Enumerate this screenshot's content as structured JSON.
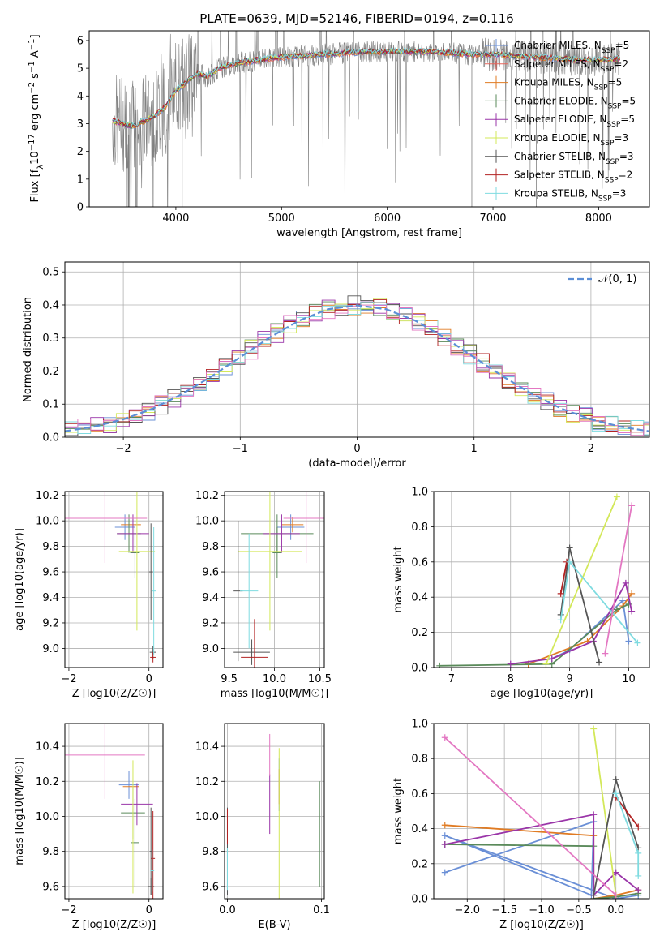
{
  "figure": {
    "colors": [
      "#6a8fd6",
      "#e8645a",
      "#e07b23",
      "#5a8a5a",
      "#9a35a8",
      "#d3e85a",
      "#555555",
      "#b22222",
      "#7fdbe0"
    ],
    "hist_colors": [
      "#6a8fd6",
      "#e07b23",
      "#5a8a5a",
      "#9a35a8",
      "#d3e85a",
      "#555555",
      "#b22222",
      "#7fdbe0",
      "#e377c2"
    ],
    "pink": "#e377c2"
  },
  "chart_data": [
    {
      "id": "spectrum",
      "type": "line",
      "title": "PLATE=0639, MJD=52146, FIBERID=0194, z=0.116",
      "xlabel": "wavelength [Angstrom, rest frame]",
      "ylabel_parts": [
        "Flux [f",
        "λ",
        "10",
        "−17",
        " erg cm",
        "−2",
        " s",
        "−1",
        " A",
        "−1",
        "]"
      ],
      "xlim": [
        3180,
        8480
      ],
      "ylim": [
        0,
        6.35
      ],
      "xticks": [
        "4000",
        "5000",
        "6000",
        "7000",
        "8000"
      ],
      "yticks": [
        "0",
        "1",
        "2",
        "3",
        "4",
        "5",
        "6"
      ],
      "legend": [
        {
          "name": "Chabrier MILES",
          "n": "5"
        },
        {
          "name": "Salpeter MILES",
          "n": "2"
        },
        {
          "name": "Kroupa MILES",
          "n": "5"
        },
        {
          "name": "Chabrier ELODIE",
          "n": "5"
        },
        {
          "name": "Salpeter ELODIE",
          "n": "5"
        },
        {
          "name": "Kroupa ELODIE",
          "n": "3"
        },
        {
          "name": "Chabrier STELIB",
          "n": "3"
        },
        {
          "name": "Salpeter STELIB",
          "n": "2"
        },
        {
          "name": "Kroupa STELIB",
          "n": "3"
        }
      ],
      "legend_sub": "SSP",
      "legend_prefix": "N",
      "model_curve_x": [
        3400,
        3500,
        3600,
        3700,
        3800,
        3900,
        4000,
        4100,
        4200,
        4300,
        4400,
        4500,
        4600,
        4700,
        4800,
        4900,
        5000,
        5200,
        5400,
        5600,
        5800,
        6000,
        6200,
        6400,
        6600,
        6800,
        7000,
        7200,
        7400,
        7600,
        7800,
        8000,
        8200
      ],
      "model_curve_y": [
        3.1,
        3.0,
        2.9,
        3.1,
        3.3,
        3.6,
        4.2,
        4.5,
        4.8,
        4.7,
        5.0,
        5.1,
        5.2,
        5.25,
        5.3,
        5.35,
        5.4,
        5.45,
        5.5,
        5.55,
        5.6,
        5.6,
        5.6,
        5.6,
        5.55,
        5.5,
        5.5,
        5.45,
        5.4,
        5.35,
        5.3,
        5.3,
        5.35
      ]
    },
    {
      "id": "residuals",
      "type": "line",
      "xlabel": "(data-model)/error",
      "ylabel": "Normed distribution",
      "xlim": [
        -2.5,
        2.5
      ],
      "ylim": [
        0,
        0.53
      ],
      "xticks": [
        "−2",
        "−1",
        "0",
        "1",
        "2"
      ],
      "yticks": [
        "0.0",
        "0.1",
        "0.2",
        "0.3",
        "0.4",
        "0.5"
      ],
      "legend": "𝒩(0, 1)",
      "gauss_x": [
        -2.5,
        -2.25,
        -2.0,
        -1.75,
        -1.5,
        -1.25,
        -1.0,
        -0.75,
        -0.5,
        -0.25,
        0.0,
        0.25,
        0.5,
        0.75,
        1.0,
        1.25,
        1.5,
        1.75,
        2.0,
        2.25,
        2.5
      ],
      "gauss_y": [
        0.018,
        0.032,
        0.054,
        0.086,
        0.13,
        0.183,
        0.242,
        0.301,
        0.352,
        0.387,
        0.399,
        0.387,
        0.352,
        0.301,
        0.242,
        0.183,
        0.13,
        0.086,
        0.054,
        0.032,
        0.018
      ]
    },
    {
      "id": "age_vs_Z",
      "type": "scatter",
      "xlabel": "Z [log10(Z/Z☉)]",
      "ylabel": "age  [log10(age/yr)]",
      "xlim": [
        -2.1,
        0.35
      ],
      "ylim": [
        8.85,
        10.23
      ],
      "xticks": [
        "−2",
        "0"
      ],
      "yticks": [
        "9.0",
        "9.2",
        "9.4",
        "9.6",
        "9.8",
        "10.0",
        "10.2"
      ],
      "points": [
        {
          "x": -0.6,
          "y": 9.95,
          "xerr": 0.25,
          "yerr": 0.1,
          "c": 0
        },
        {
          "x": -0.45,
          "y": 9.97,
          "xerr": 0.25,
          "yerr": 0.06,
          "c": 2
        },
        {
          "x": -0.5,
          "y": 9.9,
          "xerr": 0.3,
          "yerr": 0.15,
          "c": 3
        },
        {
          "x": -0.35,
          "y": 9.75,
          "xerr": 0.12,
          "yerr": 0.2,
          "c": 3
        },
        {
          "x": -0.4,
          "y": 9.9,
          "xerr": 0.4,
          "yerr": 0.15,
          "c": 4
        },
        {
          "x": -0.3,
          "y": 9.76,
          "xerr": 0.45,
          "yerr": 0.62,
          "c": 5
        },
        {
          "x": 0.05,
          "y": 9.6,
          "xerr": 0.05,
          "yerr": 0.38,
          "c": 6
        },
        {
          "x": 0.1,
          "y": 8.97,
          "xerr": 0.08,
          "yerr": 0.05,
          "c": 6
        },
        {
          "x": 0.1,
          "y": 8.93,
          "xerr": 0.07,
          "yerr": 0.04,
          "c": 7
        },
        {
          "x": 0.12,
          "y": 9.45,
          "xerr": 0.05,
          "yerr": 0.5,
          "c": 8
        },
        {
          "x": -1.1,
          "y": 10.02,
          "xerr": 1.05,
          "yerr": 0.35,
          "c": 9
        }
      ]
    },
    {
      "id": "age_vs_mass",
      "type": "scatter",
      "xlabel": "mass [log10(M/M☉)]",
      "xlim": [
        9.45,
        10.55
      ],
      "ylim": [
        8.85,
        10.23
      ],
      "xticks": [
        "9.5",
        "10.0",
        "10.5"
      ],
      "yticks": [
        "9.0",
        "9.2",
        "9.4",
        "9.6",
        "9.8",
        "10.0",
        "10.2"
      ],
      "points": [
        {
          "x": 10.18,
          "y": 9.95,
          "xerr": 0.15,
          "yerr": 0.1,
          "c": 0
        },
        {
          "x": 10.2,
          "y": 9.97,
          "xerr": 0.12,
          "yerr": 0.06,
          "c": 2
        },
        {
          "x": 10.03,
          "y": 9.9,
          "xerr": 0.4,
          "yerr": 0.15,
          "c": 3
        },
        {
          "x": 10.03,
          "y": 9.75,
          "xerr": 0.05,
          "yerr": 0.2,
          "c": 3
        },
        {
          "x": 10.08,
          "y": 9.9,
          "xerr": 0.2,
          "yerr": 0.15,
          "c": 4
        },
        {
          "x": 9.95,
          "y": 9.76,
          "xerr": 0.35,
          "yerr": 0.62,
          "c": 5
        },
        {
          "x": 9.75,
          "y": 8.97,
          "xerr": 0.2,
          "yerr": 0.1,
          "c": 6
        },
        {
          "x": 9.6,
          "y": 9.45,
          "xerr": 0.05,
          "yerr": 0.55,
          "c": 6
        },
        {
          "x": 9.78,
          "y": 8.93,
          "xerr": 0.15,
          "yerr": 0.3,
          "c": 7
        },
        {
          "x": 9.72,
          "y": 9.45,
          "xerr": 0.1,
          "yerr": 0.45,
          "c": 8
        },
        {
          "x": 10.35,
          "y": 10.02,
          "xerr": 0.25,
          "yerr": 0.35,
          "c": 9
        }
      ]
    },
    {
      "id": "weight_vs_age",
      "type": "line",
      "xlabel": "age  [log10(age/yr)]",
      "ylabel": "mass weight",
      "xlim": [
        6.7,
        10.35
      ],
      "ylim": [
        0,
        1.0
      ],
      "xticks": [
        "7",
        "8",
        "9",
        "10"
      ],
      "yticks": [
        "0.0",
        "0.2",
        "0.4",
        "0.6",
        "0.8",
        "1.0"
      ],
      "series": [
        {
          "c": 0,
          "x": [
            8.7,
            9.0,
            9.9,
            10.0
          ],
          "y": [
            0.05,
            0.1,
            0.38,
            0.15
          ]
        },
        {
          "c": 2,
          "x": [
            8.3,
            9.3,
            9.9,
            10.05
          ],
          "y": [
            0.02,
            0.15,
            0.35,
            0.42
          ]
        },
        {
          "c": 3,
          "x": [
            6.8,
            8.7,
            9.8,
            10.0
          ],
          "y": [
            0.01,
            0.02,
            0.33,
            0.36
          ]
        },
        {
          "c": 4,
          "x": [
            8.0,
            8.7,
            9.4,
            9.95,
            10.05
          ],
          "y": [
            0.02,
            0.05,
            0.15,
            0.48,
            0.32
          ]
        },
        {
          "c": 5,
          "x": [
            8.6,
            9.8
          ],
          "y": [
            0.02,
            0.97
          ]
        },
        {
          "c": 6,
          "x": [
            8.85,
            9.0,
            9.5
          ],
          "y": [
            0.3,
            0.68,
            0.03
          ]
        },
        {
          "c": 7,
          "x": [
            8.85,
            8.95
          ],
          "y": [
            0.42,
            0.6
          ]
        },
        {
          "c": 8,
          "x": [
            8.85,
            9.0,
            10.15
          ],
          "y": [
            0.27,
            0.6,
            0.14
          ]
        },
        {
          "c": 9,
          "x": [
            9.6,
            10.05
          ],
          "y": [
            0.08,
            0.92
          ]
        }
      ]
    },
    {
      "id": "mass_vs_Z",
      "type": "scatter",
      "xlabel": "Z [log10(Z/Z☉)]",
      "ylabel": "mass [log10(M/M☉)]",
      "xlim": [
        -2.1,
        0.35
      ],
      "ylim": [
        9.53,
        10.53
      ],
      "xticks": [
        "−2",
        "0"
      ],
      "yticks": [
        "9.6",
        "9.8",
        "10.0",
        "10.2",
        "10.4"
      ],
      "points": [
        {
          "x": -0.5,
          "y": 10.18,
          "xerr": 0.25,
          "yerr": 0.08,
          "c": 0
        },
        {
          "x": -0.45,
          "y": 10.17,
          "xerr": 0.2,
          "yerr": 0.05,
          "c": 2
        },
        {
          "x": -0.4,
          "y": 10.02,
          "xerr": 0.3,
          "yerr": 0.15,
          "c": 3
        },
        {
          "x": -0.35,
          "y": 9.85,
          "xerr": 0.1,
          "yerr": 0.25,
          "c": 3
        },
        {
          "x": -0.3,
          "y": 10.07,
          "xerr": 0.4,
          "yerr": 0.12,
          "c": 4
        },
        {
          "x": -0.4,
          "y": 9.94,
          "xerr": 0.4,
          "yerr": 0.38,
          "c": 5
        },
        {
          "x": 0.05,
          "y": 9.6,
          "xerr": 0.08,
          "yerr": 0.05,
          "c": 6
        },
        {
          "x": 0.05,
          "y": 9.8,
          "xerr": 0.03,
          "yerr": 0.25,
          "c": 6
        },
        {
          "x": 0.1,
          "y": 9.76,
          "xerr": 0.05,
          "yerr": 0.27,
          "c": 7
        },
        {
          "x": 0.08,
          "y": 9.69,
          "xerr": 0.05,
          "yerr": 0.12,
          "c": 8
        },
        {
          "x": -1.1,
          "y": 10.35,
          "xerr": 1.0,
          "yerr": 0.25,
          "c": 9
        }
      ]
    },
    {
      "id": "mass_vs_ebv",
      "type": "scatter",
      "xlabel": "E(B-V)",
      "xlim": [
        -0.003,
        0.103
      ],
      "ylim": [
        9.53,
        10.53
      ],
      "xticks": [
        "0.0",
        "0.1"
      ],
      "yticks": [
        "9.6",
        "9.8",
        "10.0",
        "10.2",
        "10.4"
      ],
      "points": [
        {
          "x": 0.0,
          "y": 9.75,
          "xerr": 0,
          "yerr": 0.2,
          "c": 0
        },
        {
          "x": 0.055,
          "y": 10.18,
          "xerr": 0,
          "yerr": 0.15,
          "c": 0
        },
        {
          "x": 0.055,
          "y": 10.17,
          "xerr": 0,
          "yerr": 0.1,
          "c": 2
        },
        {
          "x": 0.098,
          "y": 9.9,
          "xerr": 0,
          "yerr": 0.3,
          "c": 3
        },
        {
          "x": 0.045,
          "y": 10.07,
          "xerr": 0,
          "yerr": 0.17,
          "c": 4
        },
        {
          "x": 0.055,
          "y": 9.94,
          "xerr": 0,
          "yerr": 0.45,
          "c": 5
        },
        {
          "x": 0.0,
          "y": 9.8,
          "xerr": 0,
          "yerr": 0.25,
          "c": 6
        },
        {
          "x": 0.0,
          "y": 9.94,
          "xerr": 0,
          "yerr": 0.1,
          "c": 7
        },
        {
          "x": 0.0,
          "y": 9.7,
          "xerr": 0,
          "yerr": 0.12,
          "c": 8
        },
        {
          "x": 0.045,
          "y": 10.35,
          "xerr": 0,
          "yerr": 0.12,
          "c": 9
        }
      ]
    },
    {
      "id": "weight_vs_Z",
      "type": "line",
      "xlabel": "Z [log10(Z/Z☉)]",
      "ylabel": "mass weight",
      "xlim": [
        -2.45,
        0.45
      ],
      "ylim": [
        0,
        1.0
      ],
      "xticks": [
        "−2.0",
        "−1.5",
        "−1.0",
        "−0.5",
        "0.0"
      ],
      "yticks": [
        "0.0",
        "0.2",
        "0.4",
        "0.6",
        "0.8",
        "1.0"
      ],
      "series": [
        {
          "c": 0,
          "x": [
            -2.3,
            -0.3,
            -0.33,
            -2.3,
            0.0,
            0.3
          ],
          "y": [
            0.15,
            0.44,
            0.02,
            0.36,
            0.0,
            0.02
          ]
        },
        {
          "c": 2,
          "x": [
            -2.3,
            -0.3,
            -0.3,
            0.0,
            0.3
          ],
          "y": [
            0.42,
            0.36,
            0.0,
            0.02,
            0.05
          ]
        },
        {
          "c": 3,
          "x": [
            -2.3,
            -0.3,
            -0.3,
            0.0,
            0.3
          ],
          "y": [
            0.31,
            0.3,
            0.0,
            0.01,
            0.03
          ]
        },
        {
          "c": 4,
          "x": [
            -2.3,
            -0.3,
            -0.3,
            0.0,
            0.3
          ],
          "y": [
            0.31,
            0.48,
            0.02,
            0.15,
            0.05
          ]
        },
        {
          "c": 5,
          "x": [
            -0.3,
            0.0
          ],
          "y": [
            0.97,
            0.02
          ]
        },
        {
          "c": 6,
          "x": [
            -0.3,
            0.0,
            0.3
          ],
          "y": [
            0.02,
            0.68,
            0.29
          ]
        },
        {
          "c": 7,
          "x": [
            0.0,
            0.3
          ],
          "y": [
            0.58,
            0.41
          ]
        },
        {
          "c": 8,
          "x": [
            0.0,
            0.3,
            0.3
          ],
          "y": [
            0.6,
            0.26,
            0.13
          ]
        },
        {
          "c": 9,
          "x": [
            -2.3,
            0.0
          ],
          "y": [
            0.92,
            0.02
          ]
        }
      ]
    }
  ]
}
